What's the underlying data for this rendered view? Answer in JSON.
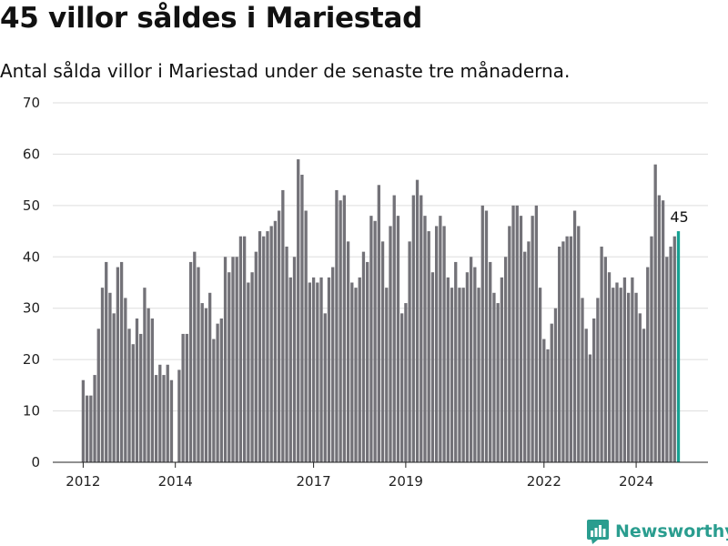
{
  "title": "45 villor såldes i Mariestad",
  "subtitle": "Antal sålda villor i Mariestad under de senaste tre månaderna.",
  "brand": "Newsworthy",
  "colors": {
    "bar": "#737278",
    "highlight": "#17a193",
    "brand": "#2a9d8f",
    "grid": "#dddddd"
  },
  "chart_data": {
    "type": "bar",
    "title": "45 villor såldes i Mariestad",
    "subtitle": "Antal sålda villor i Mariestad under de senaste tre månaderna.",
    "x_unit": "month",
    "x_start": "2012-01",
    "ylim": [
      0,
      70
    ],
    "yticks": [
      0,
      10,
      20,
      30,
      40,
      50,
      60,
      70
    ],
    "xticks": [
      "2012",
      "2014",
      "2017",
      "2019",
      "2022",
      "2024"
    ],
    "grid": "horizontal",
    "highlight_label": "45",
    "values": [
      16,
      13,
      13,
      17,
      26,
      34,
      39,
      33,
      29,
      38,
      39,
      32,
      26,
      23,
      28,
      25,
      34,
      30,
      28,
      17,
      19,
      17,
      19,
      16,
      null,
      18,
      25,
      25,
      39,
      41,
      38,
      31,
      30,
      33,
      24,
      27,
      28,
      40,
      37,
      40,
      40,
      44,
      44,
      35,
      37,
      41,
      45,
      44,
      45,
      46,
      47,
      49,
      53,
      42,
      36,
      40,
      59,
      56,
      49,
      35,
      36,
      35,
      36,
      29,
      36,
      38,
      53,
      51,
      52,
      43,
      35,
      34,
      36,
      41,
      39,
      48,
      47,
      54,
      43,
      34,
      46,
      52,
      48,
      29,
      31,
      43,
      52,
      55,
      52,
      48,
      45,
      37,
      46,
      48,
      46,
      36,
      34,
      39,
      34,
      34,
      37,
      40,
      38,
      34,
      50,
      49,
      39,
      33,
      31,
      36,
      40,
      46,
      50,
      50,
      48,
      41,
      43,
      48,
      50,
      34,
      24,
      22,
      27,
      30,
      42,
      43,
      44,
      44,
      49,
      46,
      32,
      26,
      21,
      28,
      32,
      42,
      40,
      37,
      34,
      35,
      34,
      36,
      33,
      36,
      33,
      29,
      26,
      38,
      44,
      58,
      52,
      51,
      40,
      42,
      44,
      45
    ]
  }
}
